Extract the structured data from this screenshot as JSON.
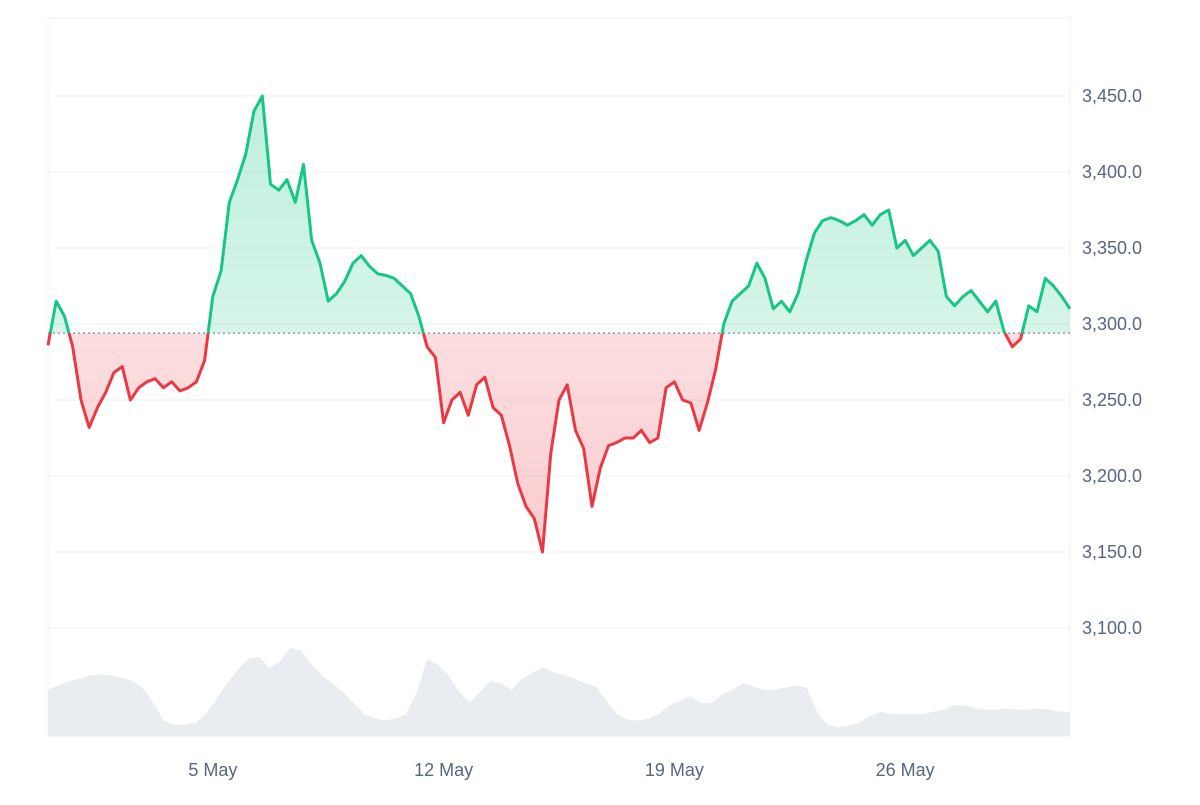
{
  "chart_data": {
    "type": "line",
    "baseline": 3294,
    "xlim": [
      "2024-04-30T00:00",
      "2024-05-31T00:00"
    ],
    "ylim": [
      3050,
      3500
    ],
    "grid": true,
    "y_ticks": [
      3100,
      3150,
      3200,
      3250,
      3300,
      3350,
      3400,
      3450
    ],
    "y_tick_labels": [
      "3,100.0",
      "3,150.0",
      "3,200.0",
      "3,250.0",
      "3,300.0",
      "3,350.0",
      "3,400.0",
      "3,450.0"
    ],
    "x_ticks": [
      "2024-05-05T00:00",
      "2024-05-12T00:00",
      "2024-05-19T00:00",
      "2024-05-26T00:00"
    ],
    "x_tick_labels": [
      "5 May",
      "12 May",
      "19 May",
      "26 May"
    ],
    "series": [
      {
        "x": [
          "2024-04-30T00:00",
          "2024-04-30T06:00",
          "2024-04-30T12:00",
          "2024-04-30T18:00",
          "2024-05-01T00:00",
          "2024-05-01T06:00",
          "2024-05-01T12:00",
          "2024-05-01T18:00",
          "2024-05-02T00:00",
          "2024-05-02T06:00",
          "2024-05-02T12:00",
          "2024-05-02T18:00",
          "2024-05-03T00:00",
          "2024-05-03T06:00",
          "2024-05-03T12:00",
          "2024-05-03T18:00",
          "2024-05-04T00:00",
          "2024-05-04T06:00",
          "2024-05-04T12:00",
          "2024-05-04T18:00",
          "2024-05-05T00:00",
          "2024-05-05T06:00",
          "2024-05-05T12:00",
          "2024-05-05T18:00",
          "2024-05-06T00:00",
          "2024-05-06T06:00",
          "2024-05-06T12:00",
          "2024-05-06T18:00",
          "2024-05-07T00:00",
          "2024-05-07T06:00",
          "2024-05-07T12:00",
          "2024-05-07T18:00",
          "2024-05-08T00:00",
          "2024-05-08T06:00",
          "2024-05-08T12:00",
          "2024-05-08T18:00",
          "2024-05-09T00:00",
          "2024-05-09T06:00",
          "2024-05-09T12:00",
          "2024-05-09T18:00",
          "2024-05-10T00:00",
          "2024-05-10T06:00",
          "2024-05-10T12:00",
          "2024-05-10T18:00",
          "2024-05-11T00:00",
          "2024-05-11T06:00",
          "2024-05-11T12:00",
          "2024-05-11T18:00",
          "2024-05-12T00:00",
          "2024-05-12T06:00",
          "2024-05-12T12:00",
          "2024-05-12T18:00",
          "2024-05-13T00:00",
          "2024-05-13T06:00",
          "2024-05-13T12:00",
          "2024-05-13T18:00",
          "2024-05-14T00:00",
          "2024-05-14T06:00",
          "2024-05-14T12:00",
          "2024-05-14T18:00",
          "2024-05-15T00:00",
          "2024-05-15T06:00",
          "2024-05-15T12:00",
          "2024-05-15T18:00",
          "2024-05-16T00:00",
          "2024-05-16T06:00",
          "2024-05-16T12:00",
          "2024-05-16T18:00",
          "2024-05-17T00:00",
          "2024-05-17T06:00",
          "2024-05-17T12:00",
          "2024-05-17T18:00",
          "2024-05-18T00:00",
          "2024-05-18T06:00",
          "2024-05-18T12:00",
          "2024-05-18T18:00",
          "2024-05-19T00:00",
          "2024-05-19T06:00",
          "2024-05-19T12:00",
          "2024-05-19T18:00",
          "2024-05-20T00:00",
          "2024-05-20T06:00",
          "2024-05-20T12:00",
          "2024-05-20T18:00",
          "2024-05-21T00:00",
          "2024-05-21T06:00",
          "2024-05-21T12:00",
          "2024-05-21T18:00",
          "2024-05-22T00:00",
          "2024-05-22T06:00",
          "2024-05-22T12:00",
          "2024-05-22T18:00",
          "2024-05-23T00:00",
          "2024-05-23T06:00",
          "2024-05-23T12:00",
          "2024-05-23T18:00",
          "2024-05-24T00:00",
          "2024-05-24T06:00",
          "2024-05-24T12:00",
          "2024-05-24T18:00",
          "2024-05-25T00:00",
          "2024-05-25T06:00",
          "2024-05-25T12:00",
          "2024-05-25T18:00",
          "2024-05-26T00:00",
          "2024-05-26T06:00",
          "2024-05-26T12:00",
          "2024-05-26T18:00",
          "2024-05-27T00:00",
          "2024-05-27T06:00",
          "2024-05-27T12:00",
          "2024-05-27T18:00",
          "2024-05-28T00:00",
          "2024-05-28T06:00",
          "2024-05-28T12:00",
          "2024-05-28T18:00",
          "2024-05-29T00:00",
          "2024-05-29T06:00",
          "2024-05-29T12:00",
          "2024-05-29T18:00",
          "2024-05-30T00:00",
          "2024-05-30T06:00",
          "2024-05-30T12:00",
          "2024-05-30T18:00",
          "2024-05-31T00:00"
        ],
        "values": [
          3286,
          3315,
          3305,
          3285,
          3250,
          3232,
          3245,
          3255,
          3268,
          3272,
          3250,
          3258,
          3262,
          3264,
          3258,
          3262,
          3256,
          3258,
          3262,
          3276,
          3318,
          3335,
          3380,
          3395,
          3412,
          3440,
          3450,
          3392,
          3388,
          3395,
          3380,
          3405,
          3355,
          3340,
          3315,
          3320,
          3328,
          3340,
          3345,
          3338,
          3333,
          3332,
          3330,
          3325,
          3320,
          3305,
          3285,
          3278,
          3235,
          3250,
          3255,
          3240,
          3260,
          3265,
          3245,
          3240,
          3220,
          3195,
          3180,
          3172,
          3150,
          3215,
          3250,
          3260,
          3230,
          3218,
          3180,
          3205,
          3220,
          3222,
          3225,
          3225,
          3230,
          3222,
          3225,
          3258,
          3262,
          3250,
          3248,
          3230,
          3248,
          3270,
          3300,
          3315,
          3320,
          3325,
          3340,
          3330,
          3310,
          3315,
          3308,
          3320,
          3342,
          3360,
          3368,
          3370,
          3368,
          3365,
          3368,
          3372,
          3365,
          3372,
          3375,
          3350,
          3355,
          3345,
          3350,
          3355,
          3348,
          3318,
          3312,
          3318,
          3322,
          3315,
          3308,
          3315,
          3295,
          3285,
          3290,
          3312,
          3308,
          3330,
          3325,
          3318,
          3310
        ]
      }
    ],
    "volume": [
      0.42,
      0.46,
      0.5,
      0.52,
      0.55,
      0.56,
      0.55,
      0.53,
      0.5,
      0.44,
      0.3,
      0.14,
      0.1,
      0.1,
      0.12,
      0.2,
      0.34,
      0.48,
      0.6,
      0.7,
      0.72,
      0.62,
      0.68,
      0.8,
      0.78,
      0.65,
      0.55,
      0.48,
      0.4,
      0.3,
      0.2,
      0.16,
      0.14,
      0.16,
      0.2,
      0.4,
      0.7,
      0.65,
      0.55,
      0.4,
      0.3,
      0.4,
      0.5,
      0.48,
      0.42,
      0.52,
      0.58,
      0.62,
      0.58,
      0.55,
      0.52,
      0.48,
      0.45,
      0.32,
      0.2,
      0.15,
      0.14,
      0.16,
      0.2,
      0.28,
      0.32,
      0.36,
      0.3,
      0.3,
      0.38,
      0.42,
      0.48,
      0.45,
      0.42,
      0.42,
      0.44,
      0.46,
      0.44,
      0.22,
      0.1,
      0.08,
      0.09,
      0.12,
      0.18,
      0.22,
      0.2,
      0.2,
      0.2,
      0.2,
      0.22,
      0.24,
      0.28,
      0.28,
      0.25,
      0.24,
      0.24,
      0.25,
      0.24,
      0.24,
      0.25,
      0.24,
      0.22,
      0.22
    ],
    "colors": {
      "up_line": "#16c784",
      "up_fill": "#16c784",
      "down_line": "#ea3943",
      "down_fill": "#ea3943",
      "baseline": "#7d8698",
      "grid": "#eef0f3",
      "volume": "#e9ecf1"
    }
  }
}
